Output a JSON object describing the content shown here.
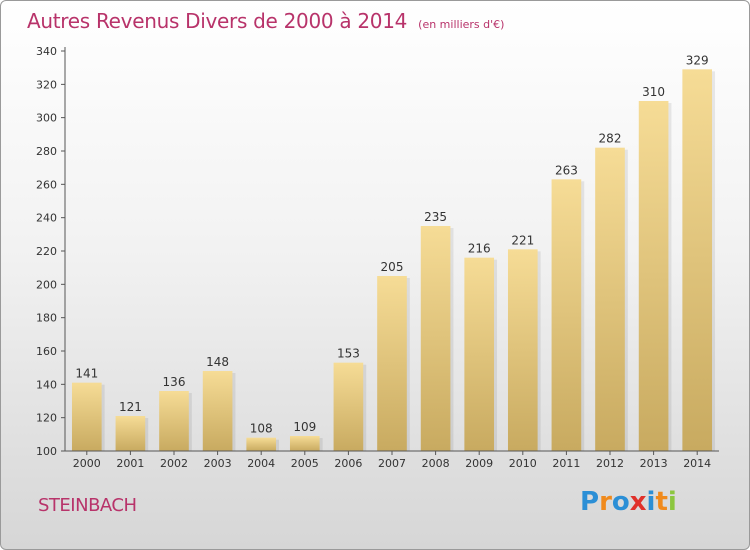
{
  "header": {
    "title": "Autres Revenus Divers de 2000 à 2014",
    "unit": "(en milliers d'€)"
  },
  "footer": {
    "city": "STEINBACH",
    "logo": {
      "text": "Proxiti",
      "colors": [
        "#2b8fd6",
        "#f08a1c",
        "#2b8fd6",
        "#e0312a",
        "#2b8fd6",
        "#f08a1c",
        "#8cc63f"
      ]
    }
  },
  "chart_data": {
    "type": "bar",
    "categories": [
      "2000",
      "2001",
      "2002",
      "2003",
      "2004",
      "2005",
      "2006",
      "2007",
      "2008",
      "2009",
      "2010",
      "2011",
      "2012",
      "2013",
      "2014"
    ],
    "values": [
      141,
      121,
      136,
      148,
      108,
      109,
      153,
      205,
      235,
      216,
      221,
      263,
      282,
      310,
      329
    ],
    "ylim": [
      100,
      340
    ],
    "yticks": [
      100,
      120,
      140,
      160,
      180,
      200,
      220,
      240,
      260,
      280,
      300,
      320,
      340
    ],
    "grid": false,
    "bar_colors": {
      "top": "#f6dc96",
      "bottom": "#c8aa60"
    }
  }
}
